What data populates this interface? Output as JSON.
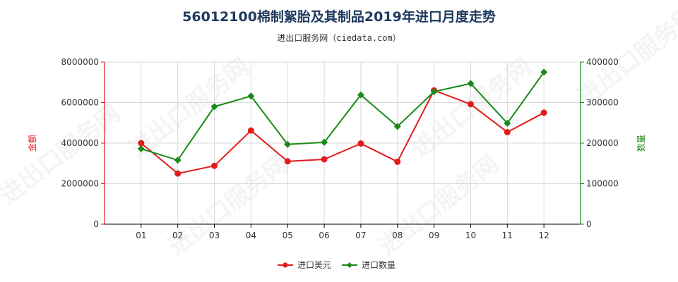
{
  "chart_data": {
    "type": "line",
    "title": "56012100棉制絮胎及其制品2019年进口月度走势",
    "subtitle": "进出口服务网（ciedata.com）",
    "categories": [
      "01",
      "02",
      "03",
      "04",
      "05",
      "06",
      "07",
      "08",
      "09",
      "10",
      "11",
      "12"
    ],
    "y_left": {
      "label": "金额",
      "range": [
        0,
        8000000
      ],
      "ticks": [
        "0",
        "2000000",
        "4000000",
        "6000000",
        "8000000"
      ],
      "color": "#e21b1b"
    },
    "y_right": {
      "label": "数量",
      "range": [
        0,
        400000
      ],
      "ticks": [
        "0",
        "100000",
        "200000",
        "300000",
        "400000"
      ],
      "color": "#1a8a1a"
    },
    "series": [
      {
        "name": "进口美元",
        "axis": "left",
        "color": "#e21b1b",
        "values": [
          4000000,
          2500000,
          2880000,
          4620000,
          3100000,
          3200000,
          3980000,
          3080000,
          6600000,
          5920000,
          4540000,
          5500000
        ]
      },
      {
        "name": "进口数量",
        "axis": "right",
        "color": "#1a8a1a",
        "values": [
          186000,
          158000,
          290000,
          316000,
          197000,
          202000,
          319000,
          241000,
          327000,
          347000,
          249000,
          375000
        ]
      }
    ],
    "grid": true,
    "legend": "bottom-center",
    "watermark": "进出口服务网"
  }
}
